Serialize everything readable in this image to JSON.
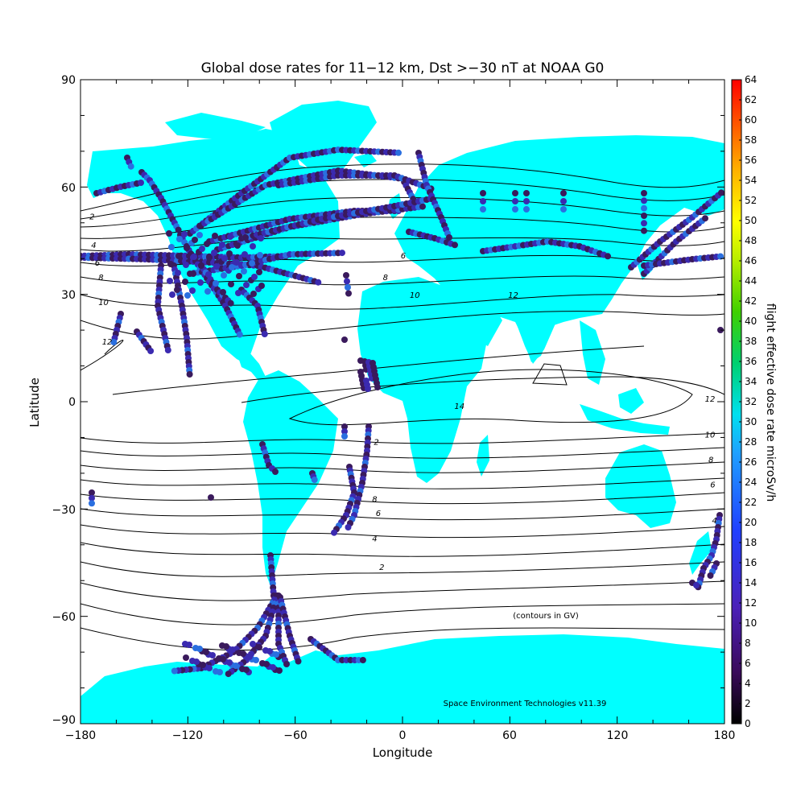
{
  "title": "Global dose rates for 11−12 km, Dst >−30 nT at NOAA G0",
  "x_axis": {
    "label": "Longitude",
    "ticks": [
      "−180",
      "−120",
      "−60",
      "0",
      "60",
      "120",
      "180"
    ]
  },
  "y_axis": {
    "label": "Latitude",
    "ticks": [
      "90",
      "60",
      "30",
      "0",
      "−30",
      "−60",
      "−90"
    ]
  },
  "colorbar": {
    "label": "flight effective dose rate microSv/h",
    "ticks": [
      "64",
      "62",
      "60",
      "58",
      "56",
      "54",
      "52",
      "50",
      "48",
      "46",
      "44",
      "42",
      "40",
      "38",
      "36",
      "34",
      "32",
      "30",
      "28",
      "26",
      "24",
      "22",
      "20",
      "18",
      "16",
      "14",
      "12",
      "10",
      "8",
      "6",
      "4",
      "2",
      "0"
    ]
  },
  "annotations": {
    "contours_note": "(contours in GV)",
    "credit": "Space Environment Technologies v11.39"
  },
  "contour_labels": [
    {
      "text": "2",
      "lon": -175,
      "lat": 51
    },
    {
      "text": "4",
      "lon": -174,
      "lat": 43
    },
    {
      "text": "6",
      "lon": -172,
      "lat": 38
    },
    {
      "text": "8",
      "lon": -170,
      "lat": 34
    },
    {
      "text": "10",
      "lon": -170,
      "lat": 27
    },
    {
      "text": "12",
      "lon": -168,
      "lat": 16
    },
    {
      "text": "6",
      "lon": -1,
      "lat": 40
    },
    {
      "text": "8",
      "lon": -11,
      "lat": 34
    },
    {
      "text": "10",
      "lon": 4,
      "lat": 29
    },
    {
      "text": "12",
      "lon": 59,
      "lat": 29
    },
    {
      "text": "14",
      "lon": 29,
      "lat": -2
    },
    {
      "text": "12",
      "lon": 169,
      "lat": 0
    },
    {
      "text": "10",
      "lon": 169,
      "lat": -10
    },
    {
      "text": "8",
      "lon": 171,
      "lat": -17
    },
    {
      "text": "6",
      "lon": 172,
      "lat": -24
    },
    {
      "text": "4",
      "lon": 173,
      "lat": -34
    },
    {
      "text": "2",
      "lon": -16,
      "lat": -12
    },
    {
      "text": "8",
      "lon": -17,
      "lat": -28
    },
    {
      "text": "6",
      "lon": -15,
      "lat": -32
    },
    {
      "text": "4",
      "lon": -17,
      "lat": -39
    },
    {
      "text": "2",
      "lon": -13,
      "lat": -47
    }
  ],
  "colors": {
    "land": "#00ffff",
    "background": "#ffffff",
    "contour_line": "#000000",
    "track_low": "#3a1a5c",
    "track_mid": "#3b2ab0",
    "track_high": "#2a6fe0"
  },
  "chart_data": {
    "type": "map",
    "projection": "equirectangular",
    "xlim": [
      -180,
      180
    ],
    "ylim": [
      -90,
      90
    ],
    "colorbar_range": [
      0,
      64
    ],
    "contour_unit": "GV",
    "contour_levels": [
      2,
      4,
      6,
      8,
      10,
      12,
      14
    ]
  }
}
